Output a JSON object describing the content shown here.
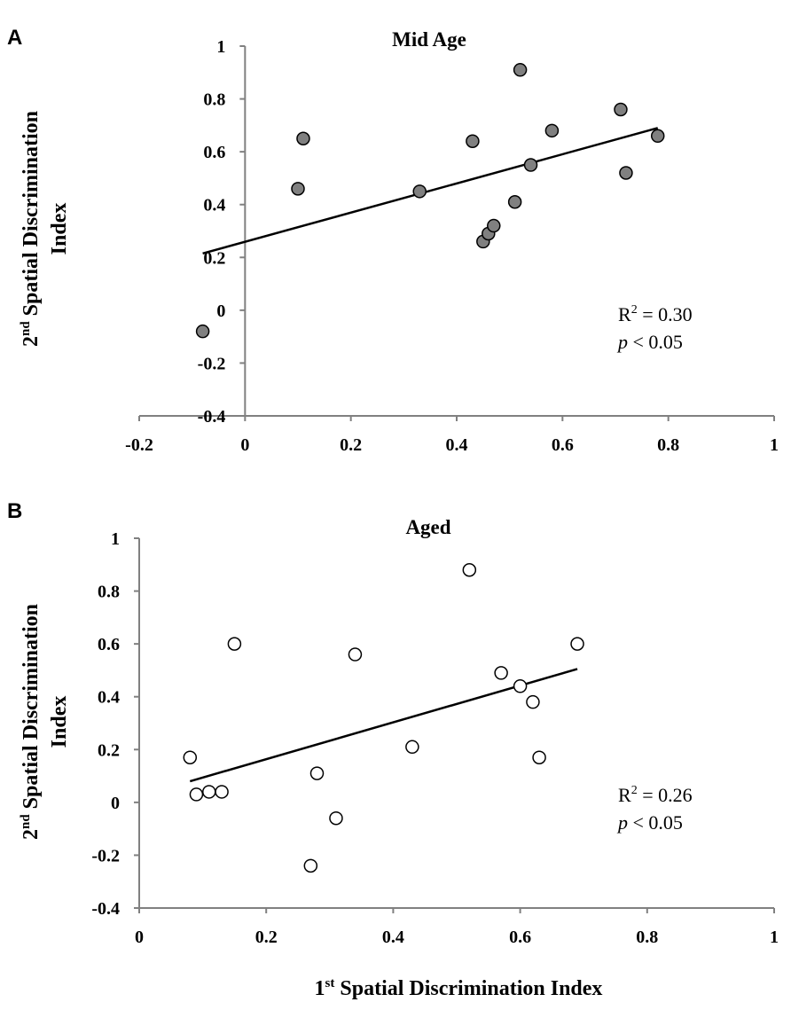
{
  "figure": {
    "x_axis_label_sup": "st",
    "x_axis_label_num": "1",
    "x_axis_label_rest": " Spatial Discrimination Index"
  },
  "chart_data": [
    {
      "type": "scatter",
      "panel": "A",
      "title": "Mid Age",
      "ylabel_num": "2",
      "ylabel_sup": "nd",
      "ylabel_line1_rest": " Spatial Discrimination",
      "ylabel_line2": "Index",
      "xlim": [
        -0.2,
        1
      ],
      "ylim": [
        -0.4,
        1
      ],
      "x_ticks": [
        "-0.2",
        "0",
        "0.2",
        "0.4",
        "0.6",
        "0.8",
        "1"
      ],
      "x_tick_values": [
        -0.2,
        0,
        0.2,
        0.4,
        0.6,
        0.8,
        1
      ],
      "y_ticks": [
        "-0.4",
        "-0.2",
        "0",
        "0.2",
        "0.4",
        "0.6",
        "0.8",
        "1"
      ],
      "y_tick_values": [
        -0.4,
        -0.2,
        0,
        0.2,
        0.4,
        0.6,
        0.8,
        1
      ],
      "marker_fill": "#808080",
      "points": [
        {
          "x": -0.08,
          "y": -0.08
        },
        {
          "x": 0.1,
          "y": 0.46
        },
        {
          "x": 0.11,
          "y": 0.65
        },
        {
          "x": 0.33,
          "y": 0.45
        },
        {
          "x": 0.43,
          "y": 0.64
        },
        {
          "x": 0.45,
          "y": 0.26
        },
        {
          "x": 0.46,
          "y": 0.29
        },
        {
          "x": 0.47,
          "y": 0.32
        },
        {
          "x": 0.51,
          "y": 0.41
        },
        {
          "x": 0.52,
          "y": 0.91
        },
        {
          "x": 0.54,
          "y": 0.55
        },
        {
          "x": 0.58,
          "y": 0.68
        },
        {
          "x": 0.71,
          "y": 0.76
        },
        {
          "x": 0.72,
          "y": 0.52
        },
        {
          "x": 0.78,
          "y": 0.66
        }
      ],
      "fit_line": {
        "x1": -0.08,
        "y1": 0.215,
        "x2": 0.78,
        "y2": 0.69
      },
      "r2_label": "R",
      "r2_sup": "2",
      "r2_value": " = 0.30",
      "p_symbol": "p",
      "p_value": " < 0.05"
    },
    {
      "type": "scatter",
      "panel": "B",
      "title": "Aged",
      "ylabel_num": "2",
      "ylabel_sup": "nd",
      "ylabel_line1_rest": " Spatial Discrimination",
      "ylabel_line2": "Index",
      "xlim": [
        0,
        1
      ],
      "ylim": [
        -0.4,
        1
      ],
      "x_ticks": [
        "0",
        "0.2",
        "0.4",
        "0.6",
        "0.8",
        "1"
      ],
      "x_tick_values": [
        0,
        0.2,
        0.4,
        0.6,
        0.8,
        1
      ],
      "y_ticks": [
        "-0.4",
        "-0.2",
        "0",
        "0.2",
        "0.4",
        "0.6",
        "0.8",
        "1"
      ],
      "y_tick_values": [
        -0.4,
        -0.2,
        0,
        0.2,
        0.4,
        0.6,
        0.8,
        1
      ],
      "marker_fill": "#ffffff",
      "points": [
        {
          "x": 0.08,
          "y": 0.17
        },
        {
          "x": 0.09,
          "y": 0.03
        },
        {
          "x": 0.11,
          "y": 0.04
        },
        {
          "x": 0.13,
          "y": 0.04
        },
        {
          "x": 0.15,
          "y": 0.6
        },
        {
          "x": 0.27,
          "y": -0.24
        },
        {
          "x": 0.28,
          "y": 0.11
        },
        {
          "x": 0.31,
          "y": -0.06
        },
        {
          "x": 0.34,
          "y": 0.56
        },
        {
          "x": 0.43,
          "y": 0.21
        },
        {
          "x": 0.52,
          "y": 0.88
        },
        {
          "x": 0.57,
          "y": 0.49
        },
        {
          "x": 0.6,
          "y": 0.44
        },
        {
          "x": 0.62,
          "y": 0.38
        },
        {
          "x": 0.63,
          "y": 0.17
        },
        {
          "x": 0.69,
          "y": 0.6
        }
      ],
      "fit_line": {
        "x1": 0.08,
        "y1": 0.08,
        "x2": 0.69,
        "y2": 0.505
      },
      "r2_label": "R",
      "r2_sup": "2",
      "r2_value": " = 0.26",
      "p_symbol": "p",
      "p_value": " < 0.05"
    }
  ]
}
